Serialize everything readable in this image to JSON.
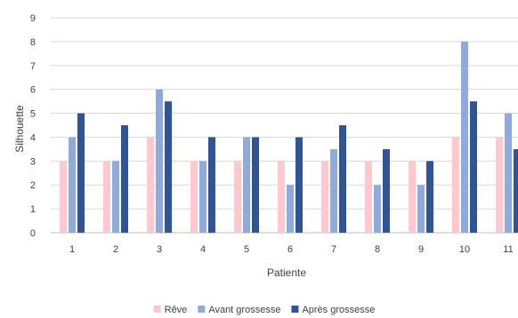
{
  "chart_data": {
    "type": "bar",
    "title": "",
    "xlabel": "Patiente",
    "ylabel": "Silhouette",
    "categories": [
      "1",
      "2",
      "3",
      "4",
      "5",
      "6",
      "7",
      "8",
      "9",
      "10",
      "11"
    ],
    "ylim": [
      0,
      9
    ],
    "yticks": [
      "0",
      "1",
      "2",
      "3",
      "4",
      "5",
      "6",
      "7",
      "8",
      "9"
    ],
    "grid": true,
    "legend_position": "bottom",
    "series": [
      {
        "name": "Rêve",
        "color": "#ffc7ce",
        "values": [
          3,
          3,
          4,
          3,
          3,
          3,
          3,
          3,
          3,
          4,
          4
        ]
      },
      {
        "name": "Avant grossesse",
        "color": "#8faadc",
        "values": [
          4,
          3,
          6,
          3,
          4,
          2,
          3.5,
          2,
          2,
          8,
          5
        ]
      },
      {
        "name": "Après grossesse",
        "color": "#2f5597",
        "values": [
          5,
          4.5,
          5.5,
          4,
          4,
          4,
          4.5,
          3.5,
          3,
          5.5,
          3.5
        ]
      }
    ]
  }
}
